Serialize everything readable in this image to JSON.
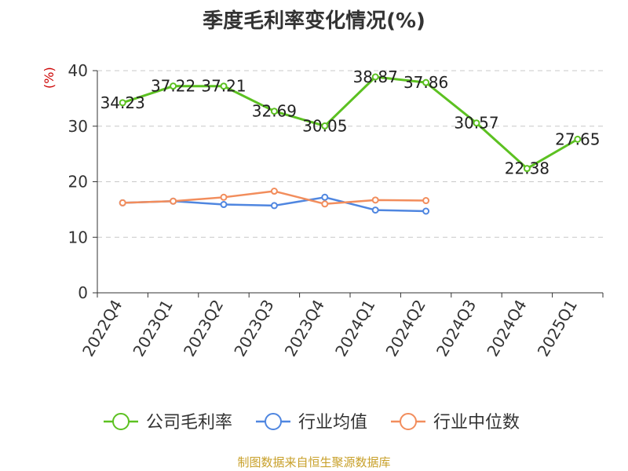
{
  "chart_data": {
    "type": "line",
    "title": "季度毛利率变化情况(%)",
    "ylabel": "(%)",
    "ylim": [
      0,
      40
    ],
    "yticks": [
      0,
      10,
      20,
      30,
      40
    ],
    "grid": true,
    "legend_position": "bottom",
    "categories": [
      "2022Q4",
      "2023Q1",
      "2023Q2",
      "2023Q3",
      "2023Q4",
      "2024Q1",
      "2024Q2",
      "2024Q3",
      "2024Q4",
      "2025Q1"
    ],
    "series": [
      {
        "name": "公司毛利率",
        "color": "#5cc121",
        "values": [
          34.23,
          37.22,
          37.21,
          32.69,
          30.05,
          38.87,
          37.86,
          30.57,
          22.38,
          27.65
        ],
        "labels": [
          "34.23",
          "37.22",
          "37.21",
          "32.69",
          "30.05",
          "38.87",
          "37.86",
          "30.57",
          "22.38",
          "27.65"
        ]
      },
      {
        "name": "行业均值",
        "color": "#4f86e0",
        "values": [
          16.2,
          16.5,
          15.9,
          15.7,
          17.2,
          14.9,
          14.7,
          null,
          null,
          null
        ]
      },
      {
        "name": "行业中位数",
        "color": "#f28d5c",
        "values": [
          16.2,
          16.5,
          17.2,
          18.3,
          16.0,
          16.7,
          16.6,
          null,
          null,
          null
        ]
      }
    ]
  },
  "footer": {
    "source": "制图数据来自恒生聚源数据库"
  }
}
